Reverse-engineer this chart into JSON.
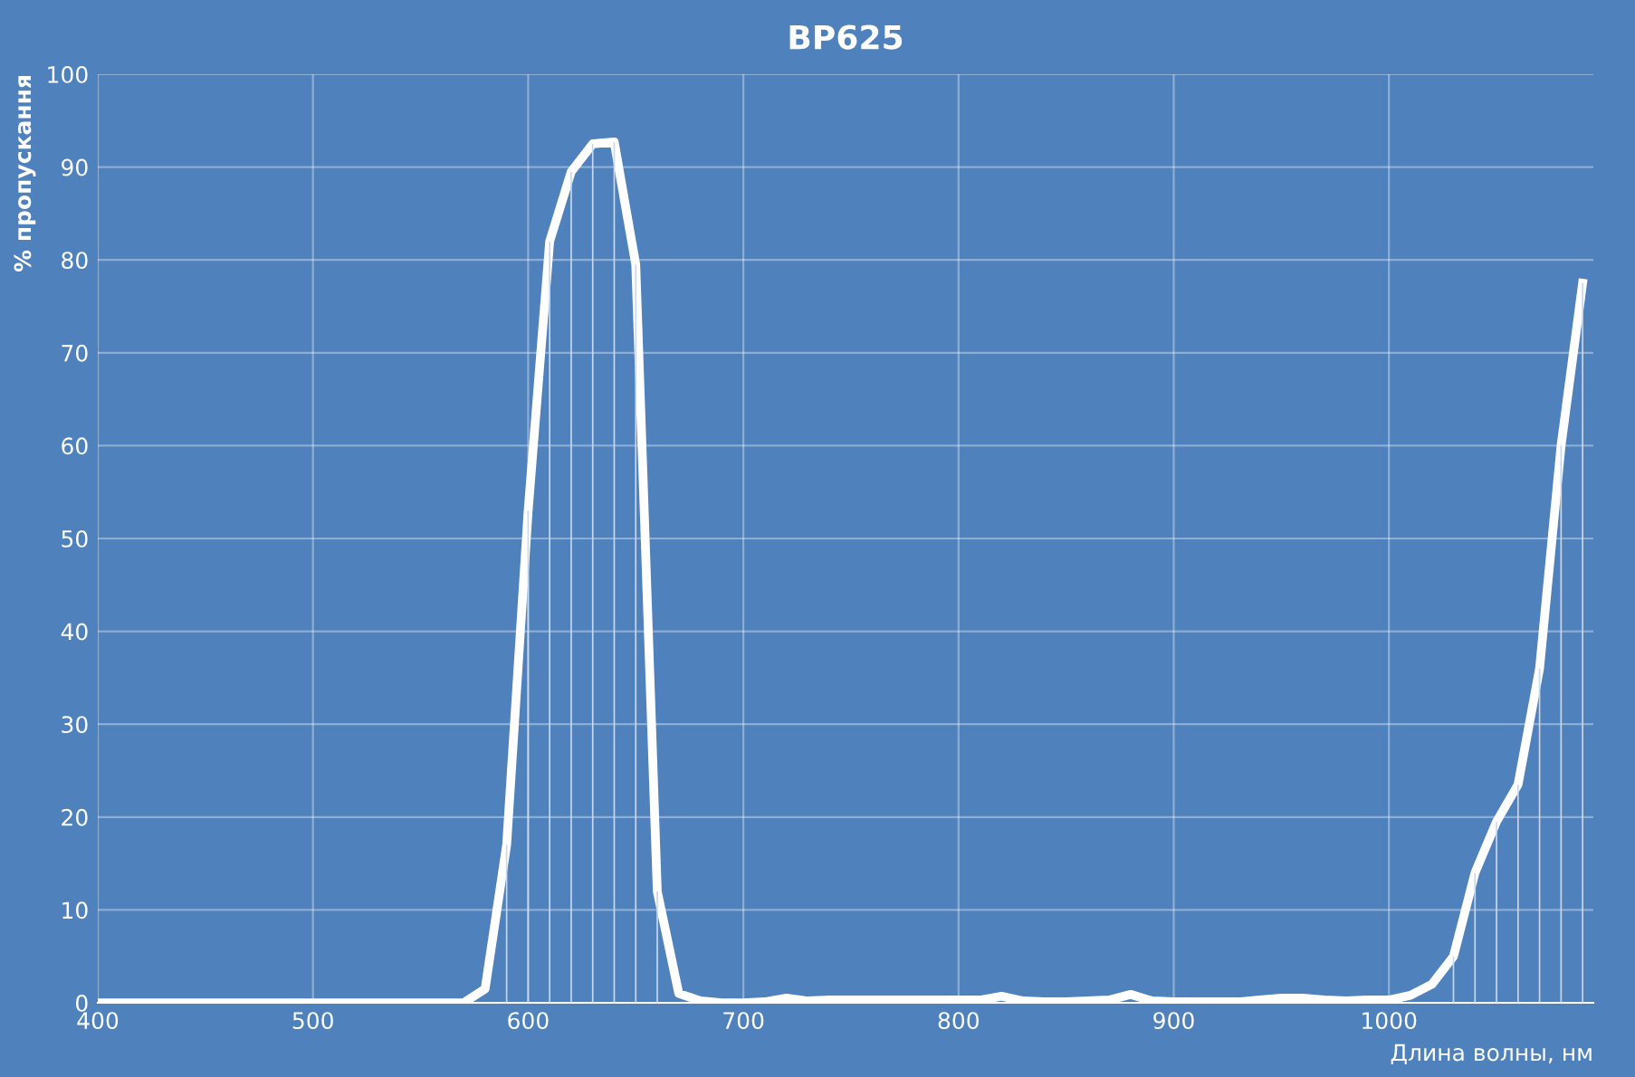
{
  "chart_data": {
    "type": "line",
    "title": "BP625",
    "xlabel": "Длина волны, нм",
    "ylabel": "% пропускання",
    "x": [
      400,
      410,
      420,
      430,
      440,
      450,
      460,
      470,
      480,
      490,
      500,
      510,
      520,
      530,
      540,
      550,
      560,
      570,
      580,
      590,
      600,
      610,
      620,
      630,
      640,
      650,
      660,
      670,
      680,
      690,
      700,
      710,
      720,
      730,
      740,
      750,
      760,
      770,
      780,
      790,
      800,
      810,
      820,
      830,
      840,
      850,
      860,
      870,
      880,
      890,
      900,
      910,
      920,
      930,
      940,
      950,
      960,
      970,
      980,
      990,
      1000,
      1010,
      1020,
      1030,
      1040,
      1050,
      1060,
      1070,
      1080,
      1090
    ],
    "series": [
      {
        "type": "bar",
        "color": "#c9d8ec",
        "values": [
          null,
          null,
          null,
          null,
          null,
          null,
          null,
          null,
          null,
          null,
          null,
          null,
          null,
          null,
          null,
          null,
          null,
          null,
          null,
          17,
          53,
          82,
          89.5,
          92.5,
          92.7,
          79.5,
          12,
          null,
          null,
          null,
          null,
          null,
          null,
          null,
          null,
          null,
          null,
          null,
          null,
          null,
          null,
          null,
          null,
          null,
          null,
          null,
          null,
          null,
          null,
          null,
          null,
          null,
          null,
          null,
          null,
          null,
          null,
          null,
          null,
          null,
          null,
          null,
          null,
          5,
          14,
          19.5,
          23.5,
          36,
          60,
          77.5
        ]
      },
      {
        "color": "#ffffff",
        "values": [
          0,
          0,
          0,
          0,
          0,
          0,
          0,
          0,
          0,
          0,
          0,
          0,
          0,
          0,
          0,
          0,
          0,
          0,
          1.5,
          17,
          53,
          82,
          89.5,
          92.5,
          92.7,
          79.5,
          12,
          1,
          0.2,
          0,
          0,
          0.1,
          0.5,
          0.2,
          0.3,
          0.3,
          0.3,
          0.3,
          0.3,
          0.3,
          0.3,
          0.3,
          0.7,
          0.2,
          0.1,
          0.1,
          0.2,
          0.3,
          0.9,
          0.2,
          0.1,
          0.1,
          0.1,
          0.1,
          0.3,
          0.5,
          0.5,
          0.3,
          0.2,
          0.3,
          0.3,
          0.8,
          2,
          5,
          14,
          19.5,
          23.5,
          36,
          60,
          77.5
        ]
      }
    ],
    "xlim": [
      400,
      1095
    ],
    "xticks": [
      400,
      500,
      600,
      700,
      800,
      900,
      1000
    ],
    "ylim": [
      0,
      100
    ],
    "yticks": [
      0,
      10,
      20,
      30,
      40,
      50,
      60,
      70,
      80,
      90,
      100
    ],
    "grid": true,
    "marker": "none",
    "line_style": "solid"
  }
}
